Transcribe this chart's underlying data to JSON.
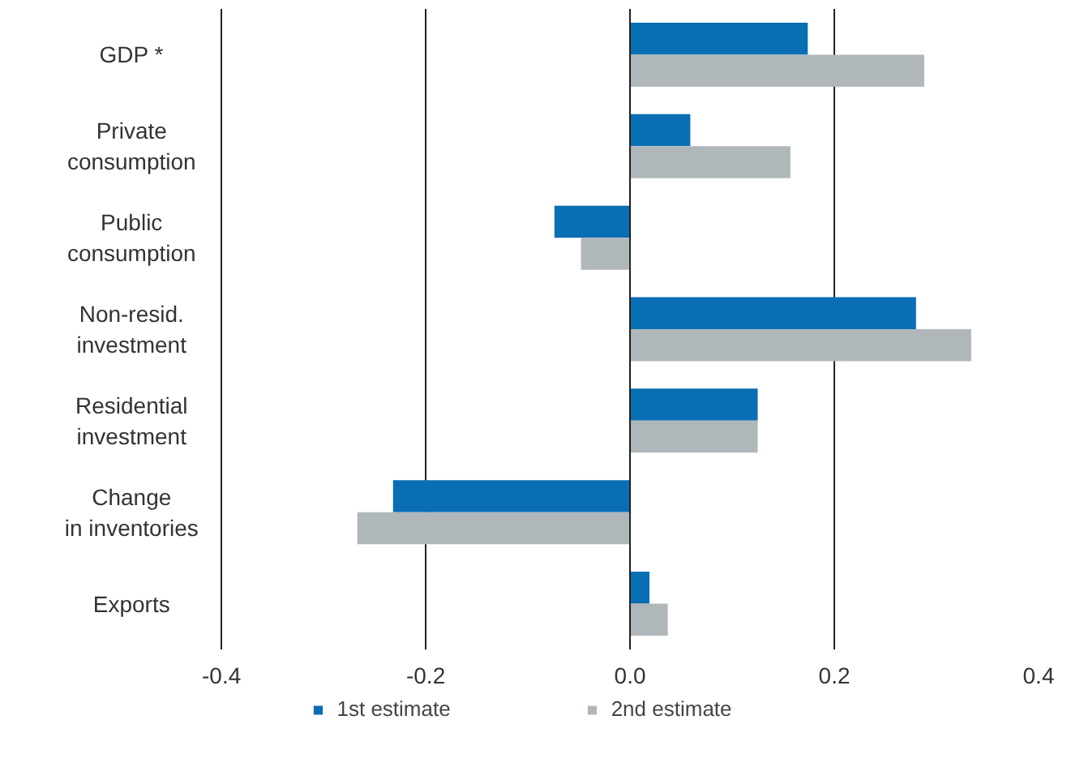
{
  "chart_data": {
    "type": "bar",
    "orientation": "horizontal",
    "categories": [
      "GDP *",
      "Private consumption",
      "Public consumption",
      "Non-resid. investment",
      "Residential investment",
      "Change in inventories",
      "Exports"
    ],
    "series": [
      {
        "name": "1st estimate",
        "color": "#0a6eb4",
        "values": [
          0.174,
          0.059,
          -0.074,
          0.28,
          0.125,
          -0.232,
          0.019
        ]
      },
      {
        "name": "2nd estimate",
        "color": "#b0b7bb",
        "values": [
          0.288,
          0.157,
          -0.048,
          0.334,
          0.125,
          -0.267,
          0.037
        ]
      }
    ],
    "xlim": [
      -0.4,
      0.4
    ],
    "xticks": [
      -0.4,
      -0.2,
      {
        "value": 0,
        "label": "0.0"
      },
      0.2,
      0.4
    ],
    "grid": "x",
    "legend": "bottom"
  }
}
